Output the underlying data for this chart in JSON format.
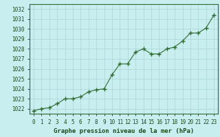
{
  "x": [
    0,
    1,
    2,
    3,
    4,
    5,
    6,
    7,
    8,
    9,
    10,
    11,
    12,
    13,
    14,
    15,
    16,
    17,
    18,
    19,
    20,
    21,
    22,
    23
  ],
  "y": [
    1021.8,
    1022.0,
    1022.1,
    1022.5,
    1023.0,
    1023.0,
    1023.2,
    1023.7,
    1023.9,
    1024.0,
    1025.4,
    1026.5,
    1026.5,
    1027.7,
    1028.0,
    1027.5,
    1027.5,
    1028.0,
    1028.2,
    1028.8,
    1029.6,
    1029.6,
    1030.1,
    1031.4
  ],
  "ylim_min": 1021.5,
  "ylim_max": 1032.5,
  "yticks": [
    1022,
    1023,
    1024,
    1025,
    1026,
    1027,
    1028,
    1029,
    1030,
    1031,
    1032
  ],
  "xticks": [
    0,
    1,
    2,
    3,
    4,
    5,
    6,
    7,
    8,
    9,
    10,
    11,
    12,
    13,
    14,
    15,
    16,
    17,
    18,
    19,
    20,
    21,
    22,
    23
  ],
  "xlabel": "Graphe pression niveau de la mer (hPa)",
  "line_color": "#2d6a2d",
  "marker_color": "#2d6a2d",
  "bg_color": "#c8eef0",
  "grid_color": "#a8d4d4",
  "tick_color": "#1a4a1a",
  "xlabel_color": "#1a4a1a",
  "xlabel_fontsize": 6.5,
  "tick_fontsize": 5.5
}
